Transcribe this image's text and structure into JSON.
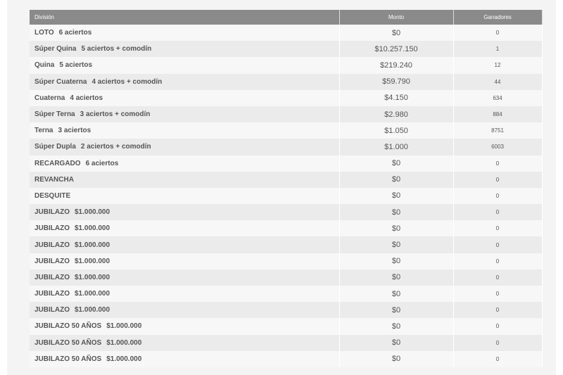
{
  "table": {
    "headers": [
      "División",
      "Monto",
      "Ganadores"
    ],
    "rows": [
      {
        "name": "LOTO",
        "detail": "6 aciertos",
        "monto": "$0",
        "ganadores": "0"
      },
      {
        "name": "Súper Quina",
        "detail": "5 aciertos + comodín",
        "monto": "$10.257.150",
        "ganadores": "1"
      },
      {
        "name": "Quina",
        "detail": "5 aciertos",
        "monto": "$219.240",
        "ganadores": "12"
      },
      {
        "name": "Súper Cuaterna",
        "detail": "4 aciertos + comodín",
        "monto": "$59.790",
        "ganadores": "44"
      },
      {
        "name": "Cuaterna",
        "detail": "4 aciertos",
        "monto": "$4.150",
        "ganadores": "634"
      },
      {
        "name": "Súper Terna",
        "detail": "3 aciertos + comodín",
        "monto": "$2.980",
        "ganadores": "884"
      },
      {
        "name": "Terna",
        "detail": "3 aciertos",
        "monto": "$1.050",
        "ganadores": "8751"
      },
      {
        "name": "Súper Dupla",
        "detail": "2 aciertos + comodín",
        "monto": "$1.000",
        "ganadores": "6003"
      },
      {
        "name": "RECARGADO",
        "detail": "6 aciertos",
        "monto": "$0",
        "ganadores": "0"
      },
      {
        "name": "REVANCHA",
        "monto": "$0",
        "ganadores": "0"
      },
      {
        "name": "DESQUITE",
        "monto": "$0",
        "ganadores": "0"
      },
      {
        "name": "JUBILAZO",
        "detail": "$1.000.000",
        "monto": "$0",
        "ganadores": "0"
      },
      {
        "name": "JUBILAZO",
        "detail": "$1.000.000",
        "monto": "$0",
        "ganadores": "0"
      },
      {
        "name": "JUBILAZO",
        "detail": "$1.000.000",
        "monto": "$0",
        "ganadores": "0"
      },
      {
        "name": "JUBILAZO",
        "detail": "$1.000.000",
        "monto": "$0",
        "ganadores": "0"
      },
      {
        "name": "JUBILAZO",
        "detail": "$1.000.000",
        "monto": "$0",
        "ganadores": "0"
      },
      {
        "name": "JUBILAZO",
        "detail": "$1.000.000",
        "monto": "$0",
        "ganadores": "0"
      },
      {
        "name": "JUBILAZO",
        "detail": "$1.000.000",
        "monto": "$0",
        "ganadores": "0"
      },
      {
        "name": "JUBILAZO 50 AÑOS",
        "detail": "$1.000.000",
        "monto": "$0",
        "ganadores": "0"
      },
      {
        "name": "JUBILAZO 50 AÑOS",
        "detail": "$1.000.000",
        "monto": "$0",
        "ganadores": "0"
      },
      {
        "name": "JUBILAZO 50 AÑOS",
        "detail": "$1.000.000",
        "monto": "$0",
        "ganadores": "0"
      }
    ]
  }
}
